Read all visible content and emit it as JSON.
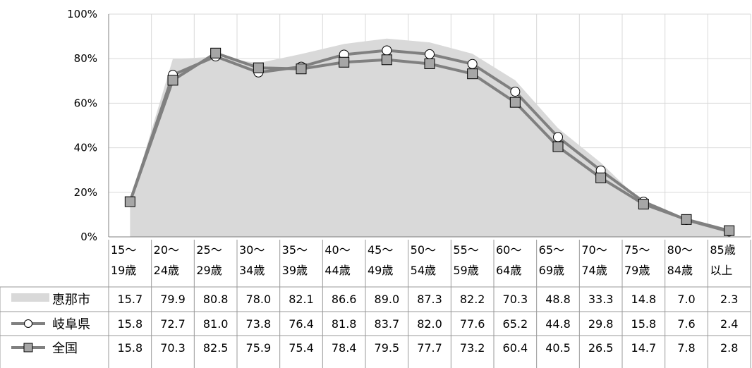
{
  "chart_data": {
    "type": "line",
    "yticks": [
      "100%",
      "80%",
      "60%",
      "40%",
      "20%",
      "0%"
    ],
    "ylim": [
      0,
      100
    ],
    "categories": [
      [
        "15～",
        "19歳"
      ],
      [
        "20～",
        "24歳"
      ],
      [
        "25～",
        "29歳"
      ],
      [
        "30～",
        "34歳"
      ],
      [
        "35～",
        "39歳"
      ],
      [
        "40～",
        "44歳"
      ],
      [
        "45～",
        "49歳"
      ],
      [
        "50～",
        "54歳"
      ],
      [
        "55～",
        "59歳"
      ],
      [
        "60～",
        "64歳"
      ],
      [
        "65～",
        "69歳"
      ],
      [
        "70～",
        "74歳"
      ],
      [
        "75～",
        "79歳"
      ],
      [
        "80～",
        "84歳"
      ],
      [
        "85歳",
        "以上"
      ]
    ],
    "series": [
      {
        "name": "恵那市",
        "style": "area",
        "color": "#d9d9d9",
        "values": [
          15.7,
          79.9,
          80.8,
          78.0,
          82.1,
          86.6,
          89.0,
          87.3,
          82.2,
          70.3,
          48.8,
          33.3,
          14.8,
          7.0,
          2.3
        ]
      },
      {
        "name": "岐阜県",
        "style": "line-circle",
        "color": "#808080",
        "values": [
          15.8,
          72.7,
          81.0,
          73.8,
          76.4,
          81.8,
          83.7,
          82.0,
          77.6,
          65.2,
          44.8,
          29.8,
          15.8,
          7.6,
          2.4
        ]
      },
      {
        "name": "全国",
        "style": "line-square",
        "color": "#808080",
        "values": [
          15.8,
          70.3,
          82.5,
          75.9,
          75.4,
          78.4,
          79.5,
          77.7,
          73.2,
          60.4,
          40.5,
          26.5,
          14.7,
          7.8,
          2.8
        ]
      }
    ],
    "table_values": [
      [
        "15.7",
        "79.9",
        "80.8",
        "78.0",
        "82.1",
        "86.6",
        "89.0",
        "87.3",
        "82.2",
        "70.3",
        "48.8",
        "33.3",
        "14.8",
        "7.0",
        "2.3"
      ],
      [
        "15.8",
        "72.7",
        "81.0",
        "73.8",
        "76.4",
        "81.8",
        "83.7",
        "82.0",
        "77.6",
        "65.2",
        "44.8",
        "29.8",
        "15.8",
        "7.6",
        "2.4"
      ],
      [
        "15.8",
        "70.3",
        "82.5",
        "75.9",
        "75.4",
        "78.4",
        "79.5",
        "77.7",
        "73.2",
        "60.4",
        "40.5",
        "26.5",
        "14.7",
        "7.8",
        "2.8"
      ]
    ],
    "grid": true,
    "legend": "data-table"
  }
}
